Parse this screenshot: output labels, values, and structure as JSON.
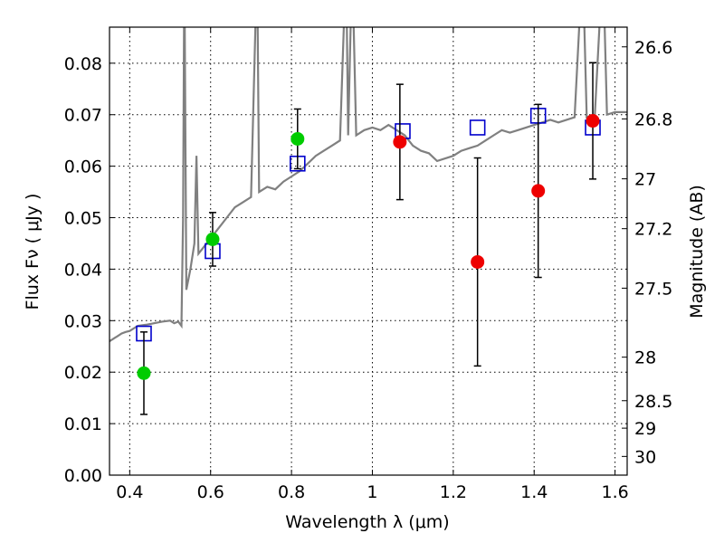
{
  "chart_data": {
    "type": "scatter",
    "title": "",
    "xlabel": "Wavelength  λ (μm)",
    "ylabel": "Flux  Fν  ( μJy )",
    "y2label": "Magnitude (AB)",
    "xlim": [
      0.35,
      1.63
    ],
    "ylim": [
      0.0,
      0.087
    ],
    "grid": true,
    "legend": "none",
    "x_ticks": [
      0.4,
      0.6,
      0.8,
      1.0,
      1.2,
      1.4,
      1.6
    ],
    "x_tick_labels": [
      "0.4",
      "0.6",
      "0.8",
      "1",
      "1.2",
      "1.4",
      "1.6"
    ],
    "y_ticks": [
      0.0,
      0.01,
      0.02,
      0.03,
      0.04,
      0.05,
      0.06,
      0.07,
      0.08
    ],
    "y_tick_labels": [
      "0.00",
      "0.01",
      "0.02",
      "0.03",
      "0.04",
      "0.05",
      "0.06",
      "0.07",
      "0.08"
    ],
    "y2_ticks": [
      26.6,
      26.8,
      27,
      27.2,
      27.5,
      28,
      28.5,
      29,
      30
    ],
    "y2_tick_labels": [
      "26.6",
      "26.8",
      "27",
      "27.2",
      "27.5",
      "28",
      "28.5",
      "29",
      "30"
    ],
    "template": {
      "color": "#808080",
      "points": [
        [
          0.35,
          0.026
        ],
        [
          0.36,
          0.0265
        ],
        [
          0.37,
          0.027
        ],
        [
          0.38,
          0.0275
        ],
        [
          0.39,
          0.0278
        ],
        [
          0.4,
          0.028
        ],
        [
          0.42,
          0.029
        ],
        [
          0.44,
          0.0292
        ],
        [
          0.46,
          0.0295
        ],
        [
          0.48,
          0.0298
        ],
        [
          0.5,
          0.03
        ],
        [
          0.51,
          0.0295
        ],
        [
          0.52,
          0.0298
        ],
        [
          0.528,
          0.029
        ],
        [
          0.532,
          0.05
        ],
        [
          0.535,
          0.1
        ],
        [
          0.54,
          0.036
        ],
        [
          0.55,
          0.04
        ],
        [
          0.56,
          0.045
        ],
        [
          0.565,
          0.062
        ],
        [
          0.57,
          0.043
        ],
        [
          0.58,
          0.044
        ],
        [
          0.6,
          0.046
        ],
        [
          0.62,
          0.048
        ],
        [
          0.64,
          0.05
        ],
        [
          0.66,
          0.052
        ],
        [
          0.68,
          0.053
        ],
        [
          0.7,
          0.054
        ],
        [
          0.715,
          0.1
        ],
        [
          0.72,
          0.055
        ],
        [
          0.74,
          0.056
        ],
        [
          0.76,
          0.0555
        ],
        [
          0.78,
          0.057
        ],
        [
          0.8,
          0.058
        ],
        [
          0.82,
          0.059
        ],
        [
          0.84,
          0.0605
        ],
        [
          0.86,
          0.062
        ],
        [
          0.88,
          0.063
        ],
        [
          0.9,
          0.064
        ],
        [
          0.92,
          0.065
        ],
        [
          0.935,
          0.1
        ],
        [
          0.94,
          0.066
        ],
        [
          0.95,
          0.1
        ],
        [
          0.96,
          0.066
        ],
        [
          0.98,
          0.067
        ],
        [
          1.0,
          0.0675
        ],
        [
          1.02,
          0.067
        ],
        [
          1.04,
          0.068
        ],
        [
          1.06,
          0.067
        ],
        [
          1.08,
          0.066
        ],
        [
          1.1,
          0.064
        ],
        [
          1.12,
          0.063
        ],
        [
          1.14,
          0.0625
        ],
        [
          1.16,
          0.061
        ],
        [
          1.18,
          0.0615
        ],
        [
          1.2,
          0.062
        ],
        [
          1.22,
          0.063
        ],
        [
          1.24,
          0.0635
        ],
        [
          1.26,
          0.064
        ],
        [
          1.28,
          0.065
        ],
        [
          1.3,
          0.066
        ],
        [
          1.32,
          0.067
        ],
        [
          1.34,
          0.0665
        ],
        [
          1.36,
          0.067
        ],
        [
          1.38,
          0.0675
        ],
        [
          1.4,
          0.068
        ],
        [
          1.42,
          0.0685
        ],
        [
          1.44,
          0.069
        ],
        [
          1.46,
          0.0685
        ],
        [
          1.48,
          0.069
        ],
        [
          1.5,
          0.0695
        ],
        [
          1.52,
          0.1
        ],
        [
          1.53,
          0.0695
        ],
        [
          1.55,
          0.07
        ],
        [
          1.57,
          0.1
        ],
        [
          1.58,
          0.07
        ],
        [
          1.6,
          0.0705
        ],
        [
          1.63,
          0.0705
        ]
      ]
    },
    "series": [
      {
        "marker": "square-open",
        "color": "#0000cc",
        "points": [
          {
            "x": 0.435,
            "y": 0.0275
          },
          {
            "x": 0.605,
            "y": 0.0435
          },
          {
            "x": 0.815,
            "y": 0.0605
          },
          {
            "x": 1.075,
            "y": 0.0668
          },
          {
            "x": 1.26,
            "y": 0.0675
          },
          {
            "x": 1.41,
            "y": 0.0698
          },
          {
            "x": 1.545,
            "y": 0.0675
          }
        ]
      },
      {
        "marker": "circle",
        "color": "#00cc00",
        "points": [
          {
            "x": 0.435,
            "y": 0.0198,
            "err": 0.008
          },
          {
            "x": 0.605,
            "y": 0.0458,
            "err": 0.0052
          },
          {
            "x": 0.815,
            "y": 0.0653,
            "err": 0.0058
          }
        ]
      },
      {
        "marker": "circle",
        "color": "#ee0000",
        "points": [
          {
            "x": 1.068,
            "y": 0.0647,
            "err": 0.0112
          },
          {
            "x": 1.26,
            "y": 0.0414,
            "err": 0.0202
          },
          {
            "x": 1.41,
            "y": 0.0552,
            "err": 0.0168
          },
          {
            "x": 1.545,
            "y": 0.0688,
            "err": 0.0113
          }
        ]
      }
    ]
  }
}
